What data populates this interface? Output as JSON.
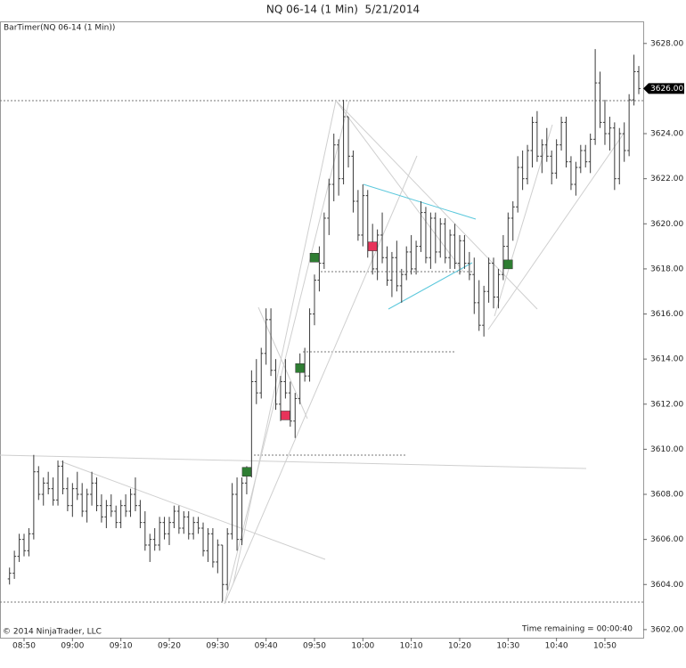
{
  "chart_data": {
    "type": "ohlc",
    "title": "NQ 06-14 (1 Min)  5/21/2014",
    "indicator": "BarTimer(NQ 06-14 (1 Min))",
    "copyright": "© 2014 NinjaTrader, LLC",
    "time_remaining": "Time remaining = 00:00:40",
    "color": "#3a3a3a",
    "x": [
      527,
      528,
      529,
      530,
      531,
      532,
      533,
      534,
      535,
      536,
      537,
      538,
      539,
      540,
      541,
      542,
      543,
      544,
      545,
      546,
      547,
      548,
      549,
      550,
      551,
      552,
      553,
      554,
      555,
      556,
      557,
      558,
      559,
      560,
      561,
      562,
      563,
      564,
      565,
      566,
      567,
      568,
      569,
      570,
      571,
      572,
      573,
      574,
      575,
      576,
      577,
      578,
      579,
      580,
      581,
      582,
      583,
      584,
      585,
      586,
      587,
      588,
      589,
      590,
      591,
      592,
      593,
      594,
      595,
      596,
      597,
      598,
      599,
      600,
      601,
      602,
      603,
      604,
      605,
      606,
      607,
      608,
      609,
      610,
      611,
      612,
      613,
      614,
      615,
      616,
      617,
      618,
      619,
      620,
      621,
      622,
      623,
      624,
      625,
      626,
      627,
      628,
      629,
      630,
      631,
      632,
      633,
      634,
      635,
      636,
      637,
      638,
      639,
      640,
      641,
      642,
      643,
      644,
      645,
      646,
      647,
      648,
      649,
      650,
      651,
      652,
      653,
      654,
      655,
      656,
      657
    ],
    "open": [
      3604.25,
      3604.5,
      3605.25,
      3606.0,
      3605.5,
      3606.25,
      3609.0,
      3608.0,
      3608.5,
      3608.25,
      3607.75,
      3609.25,
      3608.25,
      3607.5,
      3608.25,
      3608.0,
      3607.25,
      3608.0,
      3608.5,
      3607.5,
      3607.0,
      3607.5,
      3607.25,
      3606.75,
      3607.5,
      3607.25,
      3608.0,
      3607.5,
      3606.75,
      3605.75,
      3606.0,
      3605.75,
      3606.75,
      3606.25,
      3606.75,
      3607.25,
      3606.5,
      3607.0,
      3606.25,
      3606.75,
      3606.5,
      3605.5,
      3606.25,
      3605.0,
      3605.75,
      3604.0,
      3606.25,
      3608.0,
      3606.0,
      3608.5,
      3609.0,
      3613.0,
      3612.5,
      3614.25,
      3615.75,
      3613.5,
      3612.0,
      3613.0,
      3612.5,
      3611.25,
      3612.25,
      3613.75,
      3613.25,
      3616.0,
      3617.5,
      3618.25,
      3620.25,
      3621.75,
      3623.5,
      3622.0,
      3624.75,
      3623.0,
      3621.0,
      3619.5,
      3621.25,
      3619.0,
      3618.0,
      3619.5,
      3618.5,
      3617.5,
      3618.5,
      3617.25,
      3617.75,
      3618.75,
      3618.0,
      3619.0,
      3620.5,
      3618.5,
      3620.25,
      3618.75,
      3620.0,
      3618.5,
      3619.5,
      3618.25,
      3619.25,
      3618.25,
      3617.75,
      3616.5,
      3615.5,
      3617.0,
      3618.25,
      3616.75,
      3617.75,
      3619.0,
      3620.25,
      3620.75,
      3622.5,
      3622.0,
      3623.25,
      3624.5,
      3623.0,
      3623.5,
      3623.0,
      3622.25,
      3623.5,
      3624.5,
      3622.75,
      3621.75,
      3622.5,
      3623.25,
      3622.75,
      3623.75,
      3626.25,
      3624.5,
      3624.0,
      3624.25,
      3622.0,
      3624.0,
      3623.25,
      3625.5,
      3626.75
    ],
    "high": [
      3604.75,
      3605.5,
      3606.25,
      3606.25,
      3606.5,
      3609.75,
      3609.25,
      3608.75,
      3609.0,
      3608.75,
      3609.5,
      3609.5,
      3608.75,
      3608.5,
      3609.0,
      3608.5,
      3608.25,
      3609.0,
      3608.75,
      3608.0,
      3607.75,
      3608.0,
      3607.5,
      3607.75,
      3608.0,
      3608.25,
      3608.75,
      3607.75,
      3607.25,
      3606.25,
      3606.5,
      3607.0,
      3607.0,
      3607.0,
      3607.5,
      3607.5,
      3607.25,
      3607.25,
      3607.0,
      3607.0,
      3606.75,
      3606.5,
      3606.5,
      3606.0,
      3605.75,
      3606.5,
      3608.5,
      3608.75,
      3608.75,
      3609.25,
      3613.5,
      3614.0,
      3614.5,
      3616.25,
      3616.25,
      3614.0,
      3613.25,
      3614.0,
      3613.0,
      3612.5,
      3614.25,
      3614.5,
      3616.25,
      3617.75,
      3619.0,
      3620.5,
      3622.0,
      3624.0,
      3623.75,
      3625.5,
      3624.75,
      3623.25,
      3621.5,
      3621.75,
      3621.5,
      3620.0,
      3619.75,
      3620.5,
      3619.0,
      3618.75,
      3619.25,
      3618.0,
      3619.0,
      3619.5,
      3619.25,
      3621.0,
      3620.75,
      3620.5,
      3620.5,
      3620.25,
      3620.25,
      3619.75,
      3620.0,
      3619.5,
      3619.5,
      3618.75,
      3618.5,
      3617.5,
      3617.25,
      3618.5,
      3618.5,
      3618.0,
      3619.5,
      3620.5,
      3621.0,
      3623.0,
      3623.25,
      3623.5,
      3624.75,
      3625.0,
      3623.75,
      3624.25,
      3623.25,
      3623.75,
      3624.75,
      3624.75,
      3623.0,
      3622.75,
      3623.5,
      3623.5,
      3624.0,
      3627.75,
      3626.75,
      3625.5,
      3624.75,
      3624.5,
      3624.25,
      3624.5,
      3625.75,
      3627.5,
      3627.0
    ],
    "low": [
      3604.0,
      3604.25,
      3605.0,
      3605.25,
      3605.25,
      3606.0,
      3607.75,
      3607.5,
      3608.0,
      3607.5,
      3607.5,
      3608.0,
      3607.25,
      3607.0,
      3607.75,
      3607.0,
      3606.75,
      3607.5,
      3607.25,
      3606.75,
      3606.5,
      3607.0,
      3606.5,
      3606.5,
      3607.0,
      3607.0,
      3607.25,
      3606.5,
      3605.5,
      3605.0,
      3605.5,
      3605.5,
      3606.0,
      3605.75,
      3606.5,
      3606.25,
      3606.25,
      3606.0,
      3606.0,
      3606.25,
      3605.25,
      3605.0,
      3604.75,
      3604.5,
      3603.25,
      3603.75,
      3606.0,
      3605.5,
      3605.75,
      3608.0,
      3608.75,
      3612.0,
      3612.25,
      3613.75,
      3613.25,
      3611.75,
      3611.25,
      3612.25,
      3611.0,
      3610.5,
      3612.0,
      3613.0,
      3613.0,
      3615.5,
      3617.0,
      3618.0,
      3619.5,
      3621.0,
      3621.25,
      3621.75,
      3622.5,
      3620.5,
      3619.25,
      3619.0,
      3618.5,
      3617.75,
      3617.5,
      3618.25,
      3617.25,
      3616.75,
      3617.0,
      3616.5,
      3617.5,
      3617.75,
      3617.75,
      3618.75,
      3618.25,
      3618.0,
      3618.25,
      3618.5,
      3618.25,
      3618.0,
      3618.0,
      3617.75,
      3618.0,
      3617.5,
      3616.0,
      3615.25,
      3615.0,
      3616.5,
      3616.25,
      3616.25,
      3617.5,
      3618.0,
      3619.25,
      3620.5,
      3621.5,
      3621.75,
      3622.5,
      3622.75,
      3622.25,
      3622.75,
      3621.75,
      3622.0,
      3623.25,
      3622.5,
      3621.5,
      3621.25,
      3622.25,
      3622.5,
      3622.25,
      3623.5,
      3624.25,
      3623.5,
      3623.25,
      3621.5,
      3621.75,
      3622.75,
      3623.0,
      3625.25,
      3625.75
    ],
    "close": [
      3604.5,
      3605.25,
      3606.0,
      3605.5,
      3606.25,
      3609.0,
      3608.0,
      3608.5,
      3608.25,
      3607.75,
      3609.25,
      3608.25,
      3607.5,
      3608.25,
      3608.0,
      3607.25,
      3608.0,
      3608.5,
      3607.5,
      3607.0,
      3607.5,
      3607.25,
      3606.75,
      3607.5,
      3607.25,
      3608.0,
      3607.5,
      3606.75,
      3605.75,
      3606.0,
      3605.75,
      3606.75,
      3606.25,
      3606.75,
      3607.25,
      3606.5,
      3607.0,
      3606.25,
      3606.75,
      3606.5,
      3605.5,
      3606.25,
      3605.0,
      3605.75,
      3604.0,
      3606.25,
      3608.0,
      3606.0,
      3608.5,
      3609.0,
      3613.0,
      3612.5,
      3614.25,
      3615.75,
      3613.5,
      3612.0,
      3613.0,
      3612.5,
      3611.25,
      3612.25,
      3613.75,
      3613.25,
      3616.0,
      3617.5,
      3618.25,
      3620.25,
      3621.75,
      3623.5,
      3622.0,
      3624.75,
      3623.0,
      3621.0,
      3619.5,
      3621.25,
      3619.0,
      3618.0,
      3619.5,
      3618.5,
      3617.5,
      3618.5,
      3617.25,
      3617.75,
      3618.75,
      3618.0,
      3619.0,
      3620.5,
      3618.5,
      3620.25,
      3618.75,
      3620.0,
      3618.5,
      3619.5,
      3618.25,
      3619.25,
      3618.25,
      3617.75,
      3616.5,
      3615.5,
      3617.0,
      3618.25,
      3616.75,
      3617.75,
      3619.0,
      3620.25,
      3620.75,
      3622.5,
      3622.0,
      3623.25,
      3624.5,
      3623.0,
      3623.5,
      3623.0,
      3622.25,
      3623.5,
      3624.5,
      3622.75,
      3621.75,
      3622.5,
      3623.25,
      3622.75,
      3623.75,
      3626.25,
      3624.5,
      3624.0,
      3624.25,
      3622.0,
      3624.0,
      3623.25,
      3625.5,
      3626.75,
      3626.0
    ],
    "xlim": [
      525.03,
      657.92
    ],
    "ylim": [
      3601.64,
      3628.94
    ],
    "xticks": [
      {
        "value": 530,
        "label": "08:50"
      },
      {
        "value": 540,
        "label": "09:00"
      },
      {
        "value": 550,
        "label": "09:10"
      },
      {
        "value": 560,
        "label": "09:20"
      },
      {
        "value": 570,
        "label": "09:30"
      },
      {
        "value": 580,
        "label": "09:40"
      },
      {
        "value": 590,
        "label": "09:50"
      },
      {
        "value": 600,
        "label": "10:00"
      },
      {
        "value": 610,
        "label": "10:10"
      },
      {
        "value": 620,
        "label": "10:20"
      },
      {
        "value": 630,
        "label": "10:30"
      },
      {
        "value": 640,
        "label": "10:40"
      },
      {
        "value": 650,
        "label": "10:50"
      }
    ],
    "yticks": [
      {
        "value": 3602,
        "label": "3602.00"
      },
      {
        "value": 3604,
        "label": "3604.00"
      },
      {
        "value": 3606,
        "label": "3606.00"
      },
      {
        "value": 3608,
        "label": "3608.00"
      },
      {
        "value": 3610,
        "label": "3610.00"
      },
      {
        "value": 3612,
        "label": "3612.00"
      },
      {
        "value": 3614,
        "label": "3614.00"
      },
      {
        "value": 3616,
        "label": "3616.00"
      },
      {
        "value": 3618,
        "label": "3618.00"
      },
      {
        "value": 3620,
        "label": "3620.00"
      },
      {
        "value": 3622,
        "label": "3622.00"
      },
      {
        "value": 3624,
        "label": "3624.00"
      },
      {
        "value": 3626,
        "label": "3626.00"
      },
      {
        "value": 3628,
        "label": "3628.00"
      }
    ],
    "last_price": {
      "value": 3626,
      "label": "3626.00"
    },
    "signals": [
      {
        "x": 576,
        "y": 3609.0,
        "color": "#2e7d32"
      },
      {
        "x": 584,
        "y": 3611.5,
        "color": "#e8335a"
      },
      {
        "x": 587,
        "y": 3613.6,
        "color": "#2e7d32"
      },
      {
        "x": 590,
        "y": 3618.5,
        "color": "#2e7d32"
      },
      {
        "x": 602,
        "y": 3619.0,
        "color": "#e8335a"
      },
      {
        "x": 630,
        "y": 3618.2,
        "color": "#2e7d32"
      }
    ]
  }
}
